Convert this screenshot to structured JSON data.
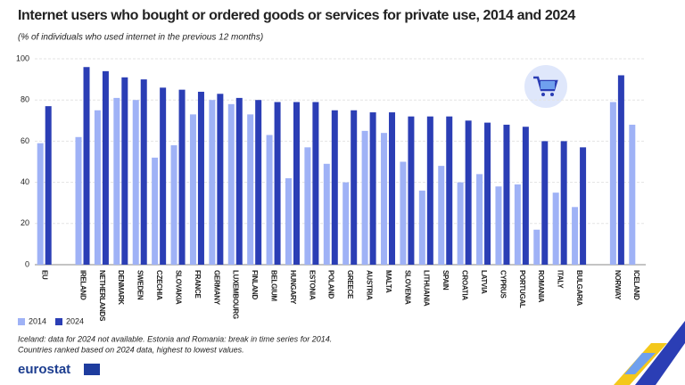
{
  "chart_data": {
    "type": "bar",
    "title": "Internet users who bought or ordered goods or services for private use, 2014 and 2024",
    "subtitle": "(% of individuals who used internet in the previous 12 months)",
    "categories": [
      "EU",
      null,
      "IRELAND",
      "NETHERLANDS",
      "DENMARK",
      "SWEDEN",
      "CZECHIA",
      "SLOVAKIA",
      "FRANCE",
      "GERMANY",
      "LUXEMBOURG",
      "FINLAND",
      "BELGIUM",
      "HUNGARY",
      "ESTONIA",
      "POLAND",
      "GREECE",
      "AUSTRIA",
      "MALTA",
      "SLOVENIA",
      "LITHUANIA",
      "SPAIN",
      "CROATIA",
      "LATVIA",
      "CYPRUS",
      "PORTUGAL",
      "ROMANIA",
      "ITALY",
      "BULGARIA",
      null,
      "NORWAY",
      "ICELAND"
    ],
    "series": [
      {
        "name": "2014",
        "color": "#9fb2f6",
        "values": [
          59,
          null,
          62,
          75,
          81,
          80,
          52,
          58,
          73,
          80,
          78,
          73,
          63,
          42,
          57,
          49,
          40,
          65,
          64,
          50,
          36,
          48,
          40,
          44,
          38,
          39,
          17,
          35,
          28,
          null,
          79,
          68
        ]
      },
      {
        "name": "2024",
        "color": "#2b3eb5",
        "values": [
          77,
          null,
          96,
          94,
          91,
          90,
          86,
          85,
          84,
          83,
          81,
          80,
          79,
          79,
          79,
          75,
          75,
          74,
          74,
          72,
          72,
          72,
          70,
          69,
          68,
          67,
          60,
          60,
          57,
          null,
          92,
          null
        ]
      }
    ],
    "ylim": [
      0,
      100
    ],
    "yticks": [
      0,
      20,
      40,
      60,
      80,
      100
    ],
    "grid": true,
    "legend": "bottom-left",
    "notes": [
      "Iceland: data for 2024 not available. Estonia and Romania: break in time series for 2014.",
      "Countries ranked based on 2024 data, highest to lowest values."
    ],
    "logo": "eurostat"
  }
}
